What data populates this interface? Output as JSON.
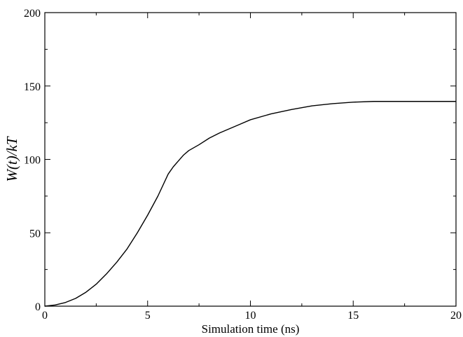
{
  "chart_data": {
    "type": "line",
    "title": "",
    "xlabel": "Simulation time (ns)",
    "ylabel": "W(t)/kT",
    "xlim": [
      0,
      20
    ],
    "ylim": [
      0,
      200
    ],
    "xticks": [
      0,
      5,
      10,
      15,
      20
    ],
    "yticks": [
      0,
      50,
      100,
      150,
      200
    ],
    "xtick_labels": [
      "0",
      "5",
      "10",
      "15",
      "20"
    ],
    "ytick_labels": [
      "0",
      "50",
      "100",
      "150",
      "200"
    ],
    "grid": false,
    "colors": {
      "line": "#000000",
      "axes": "#000000"
    },
    "series": [
      {
        "x": [
          0,
          0.5,
          1,
          1.5,
          2,
          2.5,
          3,
          3.5,
          4,
          4.5,
          5,
          5.5,
          6,
          6.25,
          6.5,
          6.75,
          7,
          7.5,
          8,
          8.5,
          9,
          9.5,
          10,
          11,
          12,
          13,
          14,
          15,
          16,
          17,
          18,
          19,
          20
        ],
        "y": [
          0,
          0.8,
          2.5,
          5.3,
          9.5,
          15,
          22,
          30,
          39,
          50,
          62,
          75,
          90,
          95,
          99,
          103,
          106,
          110,
          114.5,
          118,
          121,
          124,
          127,
          131,
          134,
          136.5,
          138,
          139,
          139.5,
          139.5,
          139.5,
          139.5,
          139.5
        ]
      }
    ]
  }
}
